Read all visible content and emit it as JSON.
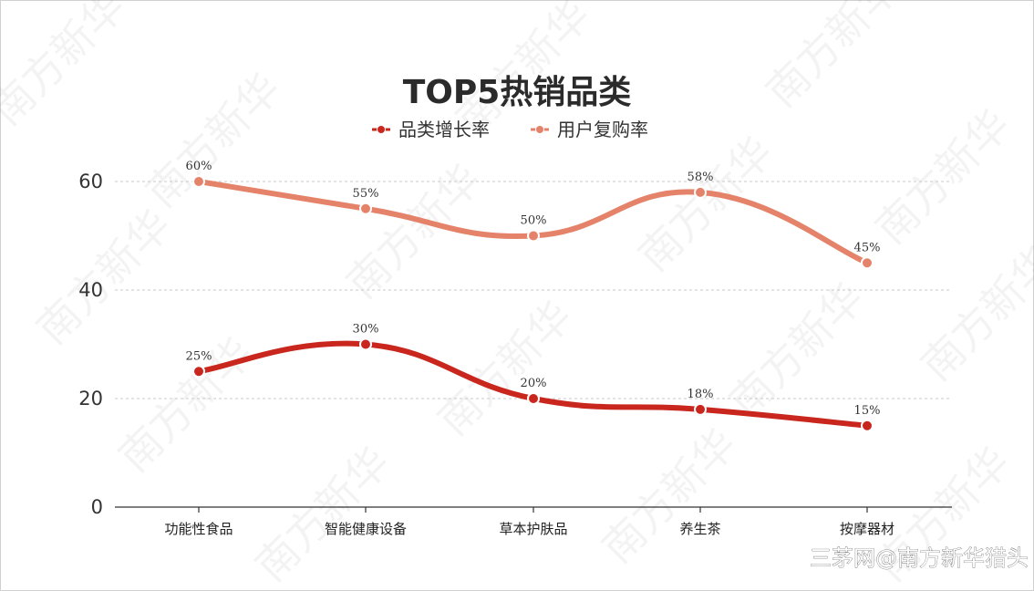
{
  "chart_data": {
    "type": "line",
    "title": "TOP5热销品类",
    "categories": [
      "功能性食品",
      "智能健康设备",
      "草本护肤品",
      "养生茶",
      "按摩器材"
    ],
    "series": [
      {
        "name": "品类增长率",
        "values": [
          25,
          30,
          20,
          18,
          15
        ],
        "labels": [
          "25%",
          "30%",
          "20%",
          "18%",
          "15%"
        ],
        "color": "#c9271e"
      },
      {
        "name": "用户复购率",
        "values": [
          60,
          55,
          50,
          58,
          45
        ],
        "labels": [
          "60%",
          "55%",
          "50%",
          "58%",
          "45%"
        ],
        "color": "#e5836a"
      }
    ],
    "ylim": [
      0,
      60
    ],
    "yticks": [
      0,
      20,
      40,
      60
    ],
    "grid": true,
    "legend": "top-center",
    "smooth": true
  },
  "watermark": "南方新华",
  "footer": "三茅网@南方新华猎头"
}
